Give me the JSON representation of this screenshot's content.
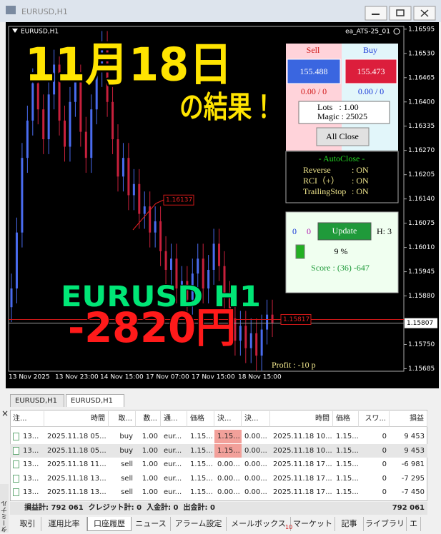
{
  "window": {
    "title": "EURUSD,H1"
  },
  "chart": {
    "type": "candlestick",
    "symbol_label": "EURUSD,H1",
    "ea_label": "ea_ATS-25_01",
    "ylim": [
      1.1564,
      1.1661
    ],
    "yticks": [
      1.16595,
      {
        "value": 1.1653,
        "label": "1.16530"
      },
      1.16465,
      {
        "value": 1.164,
        "label": "1.16400"
      },
      1.16335,
      {
        "value": 1.1627,
        "label": "1.16270"
      },
      1.16205,
      {
        "value": 1.1614,
        "label": "1.16140"
      },
      1.16075,
      {
        "value": 1.1601,
        "label": "1.16010"
      },
      1.15945,
      {
        "value": 1.1588,
        "label": "1.15880"
      },
      {
        "value": 1.1575,
        "label": "1.15750"
      },
      1.15685
    ],
    "current_price": 1.15807,
    "levels": [
      1.16137,
      1.15817
    ],
    "xlabels": [
      "13 Nov 2025",
      "13 Nov 23:00",
      "14 Nov 15:00",
      "17 Nov 07:00",
      "17 Nov 15:00",
      "18 Nov 15:00"
    ],
    "bull_color": "#4a6cf0",
    "bear_color": "#c8203c",
    "candles": [
      [
        1.1585,
        1.1594,
        1.1581,
        1.159
      ],
      [
        1.159,
        1.1609,
        1.1586,
        1.1605
      ],
      [
        1.1605,
        1.1629,
        1.1601,
        1.1625
      ],
      [
        1.1625,
        1.1639,
        1.1621,
        1.1635
      ],
      [
        1.1635,
        1.1649,
        1.1631,
        1.1645
      ],
      [
        1.1645,
        1.1649,
        1.1634,
        1.1638
      ],
      [
        1.1638,
        1.1642,
        1.1626,
        1.163
      ],
      [
        1.163,
        1.1646,
        1.1626,
        1.1642
      ],
      [
        1.1642,
        1.1654,
        1.1638,
        1.165
      ],
      [
        1.165,
        1.1654,
        1.1631,
        1.1635
      ],
      [
        1.1635,
        1.1639,
        1.1624,
        1.1628
      ],
      [
        1.1628,
        1.1644,
        1.1624,
        1.164
      ],
      [
        1.164,
        1.165,
        1.1636,
        1.1646
      ],
      [
        1.1646,
        1.165,
        1.1628,
        1.1632
      ],
      [
        1.1632,
        1.1636,
        1.1621,
        1.1625
      ],
      [
        1.1625,
        1.1642,
        1.1621,
        1.1638
      ],
      [
        1.1638,
        1.1652,
        1.1634,
        1.1648
      ],
      [
        1.1648,
        1.1659,
        1.1644,
        1.1655
      ],
      [
        1.1655,
        1.1659,
        1.1636,
        1.164
      ],
      [
        1.164,
        1.1644,
        1.1626,
        1.163
      ],
      [
        1.163,
        1.1634,
        1.1616,
        1.162
      ],
      [
        1.162,
        1.1629,
        1.1616,
        1.1625
      ],
      [
        1.1625,
        1.1629,
        1.1611,
        1.1615
      ],
      [
        1.1615,
        1.1622,
        1.1611,
        1.1618
      ],
      [
        1.1618,
        1.1622,
        1.1606,
        1.161
      ],
      [
        1.161,
        1.1616,
        1.1606,
        1.1612
      ],
      [
        1.1612,
        1.1616,
        1.1601,
        1.1605
      ],
      [
        1.1605,
        1.1612,
        1.1601,
        1.1608
      ],
      [
        1.1608,
        1.1612,
        1.1596,
        1.16
      ],
      [
        1.16,
        1.1604,
        1.1591,
        1.1595
      ],
      [
        1.1595,
        1.1602,
        1.1591,
        1.1598
      ],
      [
        1.1598,
        1.1602,
        1.1586,
        1.159
      ],
      [
        1.159,
        1.1596,
        1.1586,
        1.1592
      ],
      [
        1.1592,
        1.1596,
        1.1583,
        1.1587
      ],
      [
        1.1587,
        1.1598,
        1.1583,
        1.1594
      ],
      [
        1.1594,
        1.1602,
        1.159,
        1.1598
      ],
      [
        1.1598,
        1.1602,
        1.1586,
        1.159
      ],
      [
        1.159,
        1.1599,
        1.1586,
        1.1595
      ],
      [
        1.1595,
        1.1606,
        1.1591,
        1.1602
      ],
      [
        1.1602,
        1.1606,
        1.1592,
        1.1596
      ],
      [
        1.1596,
        1.16,
        1.1584,
        1.1588
      ],
      [
        1.1588,
        1.1592,
        1.1578,
        1.1582
      ],
      [
        1.1582,
        1.1586,
        1.1572,
        1.1576
      ],
      [
        1.1576,
        1.1584,
        1.1572,
        1.158
      ],
      [
        1.158,
        1.1584,
        1.157,
        1.1574
      ],
      [
        1.1574,
        1.1582,
        1.157,
        1.1578
      ],
      [
        1.1578,
        1.1582,
        1.1568,
        1.1572
      ],
      [
        1.1572,
        1.1583,
        1.1568,
        1.1579
      ],
      [
        1.1579,
        1.1587,
        1.1575,
        1.1583
      ],
      [
        1.1583,
        1.1587,
        1.1577,
        1.15807
      ]
    ],
    "profit_label": "Profit : -10 p"
  },
  "overlay": {
    "date_title": "11月18日",
    "result": "の結果！",
    "pair": "EURUSD H1",
    "amount": "-2820円"
  },
  "panel": {
    "sell_label": "Sell",
    "buy_label": "Buy",
    "sell_price": "155.488",
    "buy_price": "155.473",
    "sell_pl": "0.00 / 0",
    "buy_pl": "0.00 / 0",
    "lots": "Lots   : 1.00",
    "magic": "Magic : 25025",
    "close_all": "All Close"
  },
  "autoclose": {
    "title": "- AutoClose -",
    "rows": [
      [
        "Reverse",
        ": ON"
      ],
      [
        "RCI（+）",
        ": ON"
      ],
      [
        "TrailingStop",
        ": ON"
      ]
    ]
  },
  "update": {
    "left": "0",
    "right": "0",
    "button": "Update",
    "h": "H: 3",
    "percent": "9 %",
    "score": "Score : (36) -647"
  },
  "terminal": {
    "tabs": [
      "EURUSD,H1",
      "EURUSD,H1"
    ],
    "side_label": "ターミナル",
    "columns": [
      "注...",
      "時間",
      "取...",
      "数...",
      "通...",
      "価格",
      "決...",
      "決...",
      "時間",
      "価格",
      "スワ...",
      "損益"
    ],
    "rows": [
      [
        "13...",
        "2025.11.18 05...",
        "buy",
        "1.00",
        "eur...",
        "1.15...",
        "1.15...",
        "0.00...",
        "2025.11.18 10...",
        "1.15...",
        "0",
        "9 453"
      ],
      [
        "13...",
        "2025.11.18 05...",
        "buy",
        "1.00",
        "eur...",
        "1.15...",
        "1.15...",
        "0.00...",
        "2025.11.18 10...",
        "1.15...",
        "0",
        "9 453"
      ],
      [
        "13...",
        "2025.11.18 11...",
        "sell",
        "1.00",
        "eur...",
        "1.15...",
        "0.00...",
        "0.00...",
        "2025.11.18 17...",
        "1.15...",
        "0",
        "-6 981"
      ],
      [
        "13...",
        "2025.11.18 13...",
        "sell",
        "1.00",
        "eur...",
        "1.15...",
        "0.00...",
        "0.00...",
        "2025.11.18 17...",
        "1.15...",
        "0",
        "-7 295"
      ],
      [
        "13...",
        "2025.11.18 13...",
        "sell",
        "1.00",
        "eur...",
        "1.15...",
        "0.00...",
        "0.00...",
        "2025.11.18 17...",
        "1.15...",
        "0",
        "-7 450"
      ]
    ],
    "summary": "損益計: 792 061  クレジット計: 0  入金計: 0  出金計: 0",
    "total": "792 061",
    "bottom_tabs": [
      "取引",
      "運用比率",
      "口座履歴",
      "ニュース",
      "アラーム設定",
      "メールボックス",
      "マーケット",
      "記事",
      "ライブラリ",
      "エ"
    ],
    "mail_badge": "10"
  }
}
